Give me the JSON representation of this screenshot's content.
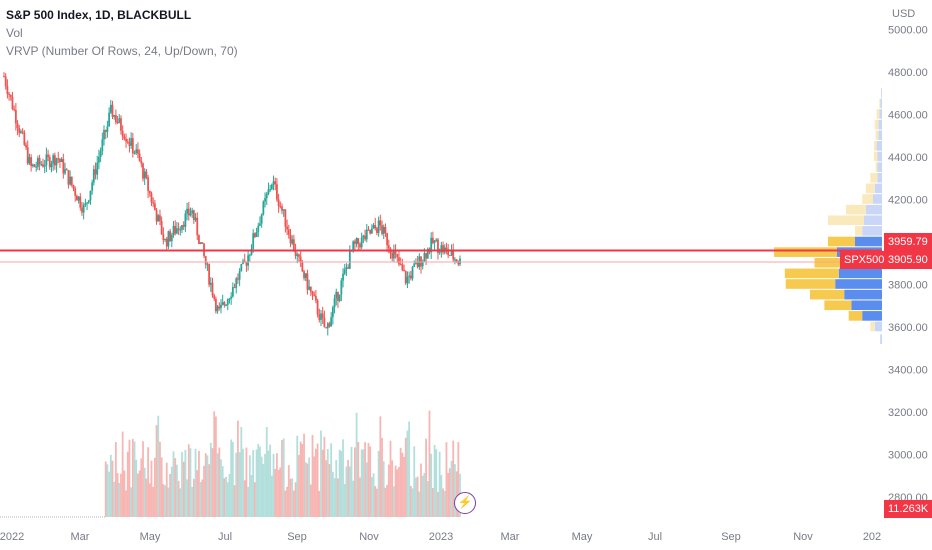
{
  "legend": {
    "title": "S&P 500 Index, 1D, BLACKBULL",
    "vol": "Vol",
    "vrvp": "VRVP (Number Of Rows, 24, Up/Down, 70)"
  },
  "currency": "USD",
  "price_tags": {
    "last_price": "3959.79",
    "symbol": "SPX500",
    "symbol_price": "3905.90",
    "volume": "11.263K"
  },
  "colors": {
    "up": "#26a69a",
    "down": "#ef5350",
    "vol_up": "#b2dfdb",
    "vol_down": "#f7b6b3",
    "vrvp_up": "#5b8def",
    "vrvp_down": "#f6c94f",
    "line": "#f23645"
  },
  "flash_icon": "lightning-icon",
  "chart_data": {
    "type": "candlestick",
    "title": "S&P 500 Index, 1D, BLACKBULL",
    "ylabel": "USD",
    "y_ticks": [
      3400,
      3600,
      3800,
      4000,
      4200,
      4400,
      4600,
      4800,
      5000
    ],
    "y_tick_labels": [
      "3400.00",
      "3600.00",
      "3800.00",
      "4000.00",
      "4200.00",
      "4400.00",
      "4600.00",
      "4800.00",
      "5000.00"
    ],
    "y_axis_visible_from": "2800.00",
    "x_tick_labels": [
      "2022",
      "Mar",
      "May",
      "Jul",
      "Sep",
      "Nov",
      "2023",
      "Mar",
      "May",
      "Jul",
      "Sep",
      "Nov",
      "202"
    ],
    "ylim": [
      2700,
      5020
    ],
    "horizontal_line": 3959.79,
    "current_price": 3905.9,
    "price_path_keypoints": [
      {
        "month": "2022-01",
        "close": 4780
      },
      {
        "month": "2022-01-late",
        "close": 4350
      },
      {
        "month": "2022-02",
        "close": 4400
      },
      {
        "month": "2022-02-late",
        "close": 4150
      },
      {
        "month": "2022-03-late",
        "close": 4620
      },
      {
        "month": "2022-04",
        "close": 4400
      },
      {
        "month": "2022-05",
        "close": 4000
      },
      {
        "month": "2022-05-late",
        "close": 4150
      },
      {
        "month": "2022-06",
        "close": 3660
      },
      {
        "month": "2022-07",
        "close": 3900
      },
      {
        "month": "2022-08",
        "close": 4290
      },
      {
        "month": "2022-09",
        "close": 3900
      },
      {
        "month": "2022-10",
        "close": 3580
      },
      {
        "month": "2022-11",
        "close": 3970
      },
      {
        "month": "2022-12",
        "close": 4080
      },
      {
        "month": "2022-12-late",
        "close": 3820
      },
      {
        "month": "2023-01",
        "close": 3999
      },
      {
        "month": "2023-01-end",
        "close": 3905.9
      }
    ],
    "volume_label": "11.263K",
    "vrvp_rows": [
      {
        "price": 3540,
        "up": 0.02,
        "down": 0.0
      },
      {
        "price": 3600,
        "up": 0.08,
        "down": 0.05
      },
      {
        "price": 3650,
        "up": 0.22,
        "down": 0.15
      },
      {
        "price": 3700,
        "up": 0.34,
        "down": 0.3
      },
      {
        "price": 3750,
        "up": 0.42,
        "down": 0.38
      },
      {
        "price": 3800,
        "up": 0.52,
        "down": 0.55
      },
      {
        "price": 3850,
        "up": 0.48,
        "down": 0.6
      },
      {
        "price": 3900,
        "up": 0.3,
        "down": 0.45
      },
      {
        "price": 3950,
        "up": 0.5,
        "down": 0.7
      },
      {
        "price": 4000,
        "up": 0.3,
        "down": 0.3
      },
      {
        "price": 4050,
        "up": 0.22,
        "down": 0.08
      },
      {
        "price": 4100,
        "up": 0.2,
        "down": 0.4
      },
      {
        "price": 4150,
        "up": 0.18,
        "down": 0.22
      },
      {
        "price": 4200,
        "up": 0.1,
        "down": 0.12
      },
      {
        "price": 4250,
        "up": 0.08,
        "down": 0.1
      },
      {
        "price": 4300,
        "up": 0.05,
        "down": 0.08
      },
      {
        "price": 4350,
        "up": 0.05,
        "down": 0.02
      },
      {
        "price": 4400,
        "up": 0.05,
        "down": 0.04
      },
      {
        "price": 4450,
        "up": 0.06,
        "down": 0.03
      },
      {
        "price": 4500,
        "up": 0.04,
        "down": 0.03
      },
      {
        "price": 4550,
        "up": 0.04,
        "down": 0.04
      },
      {
        "price": 4600,
        "up": 0.03,
        "down": 0.03
      },
      {
        "price": 4650,
        "up": 0.02,
        "down": 0.01
      },
      {
        "price": 4700,
        "up": 0.01,
        "down": 0.0
      }
    ]
  }
}
